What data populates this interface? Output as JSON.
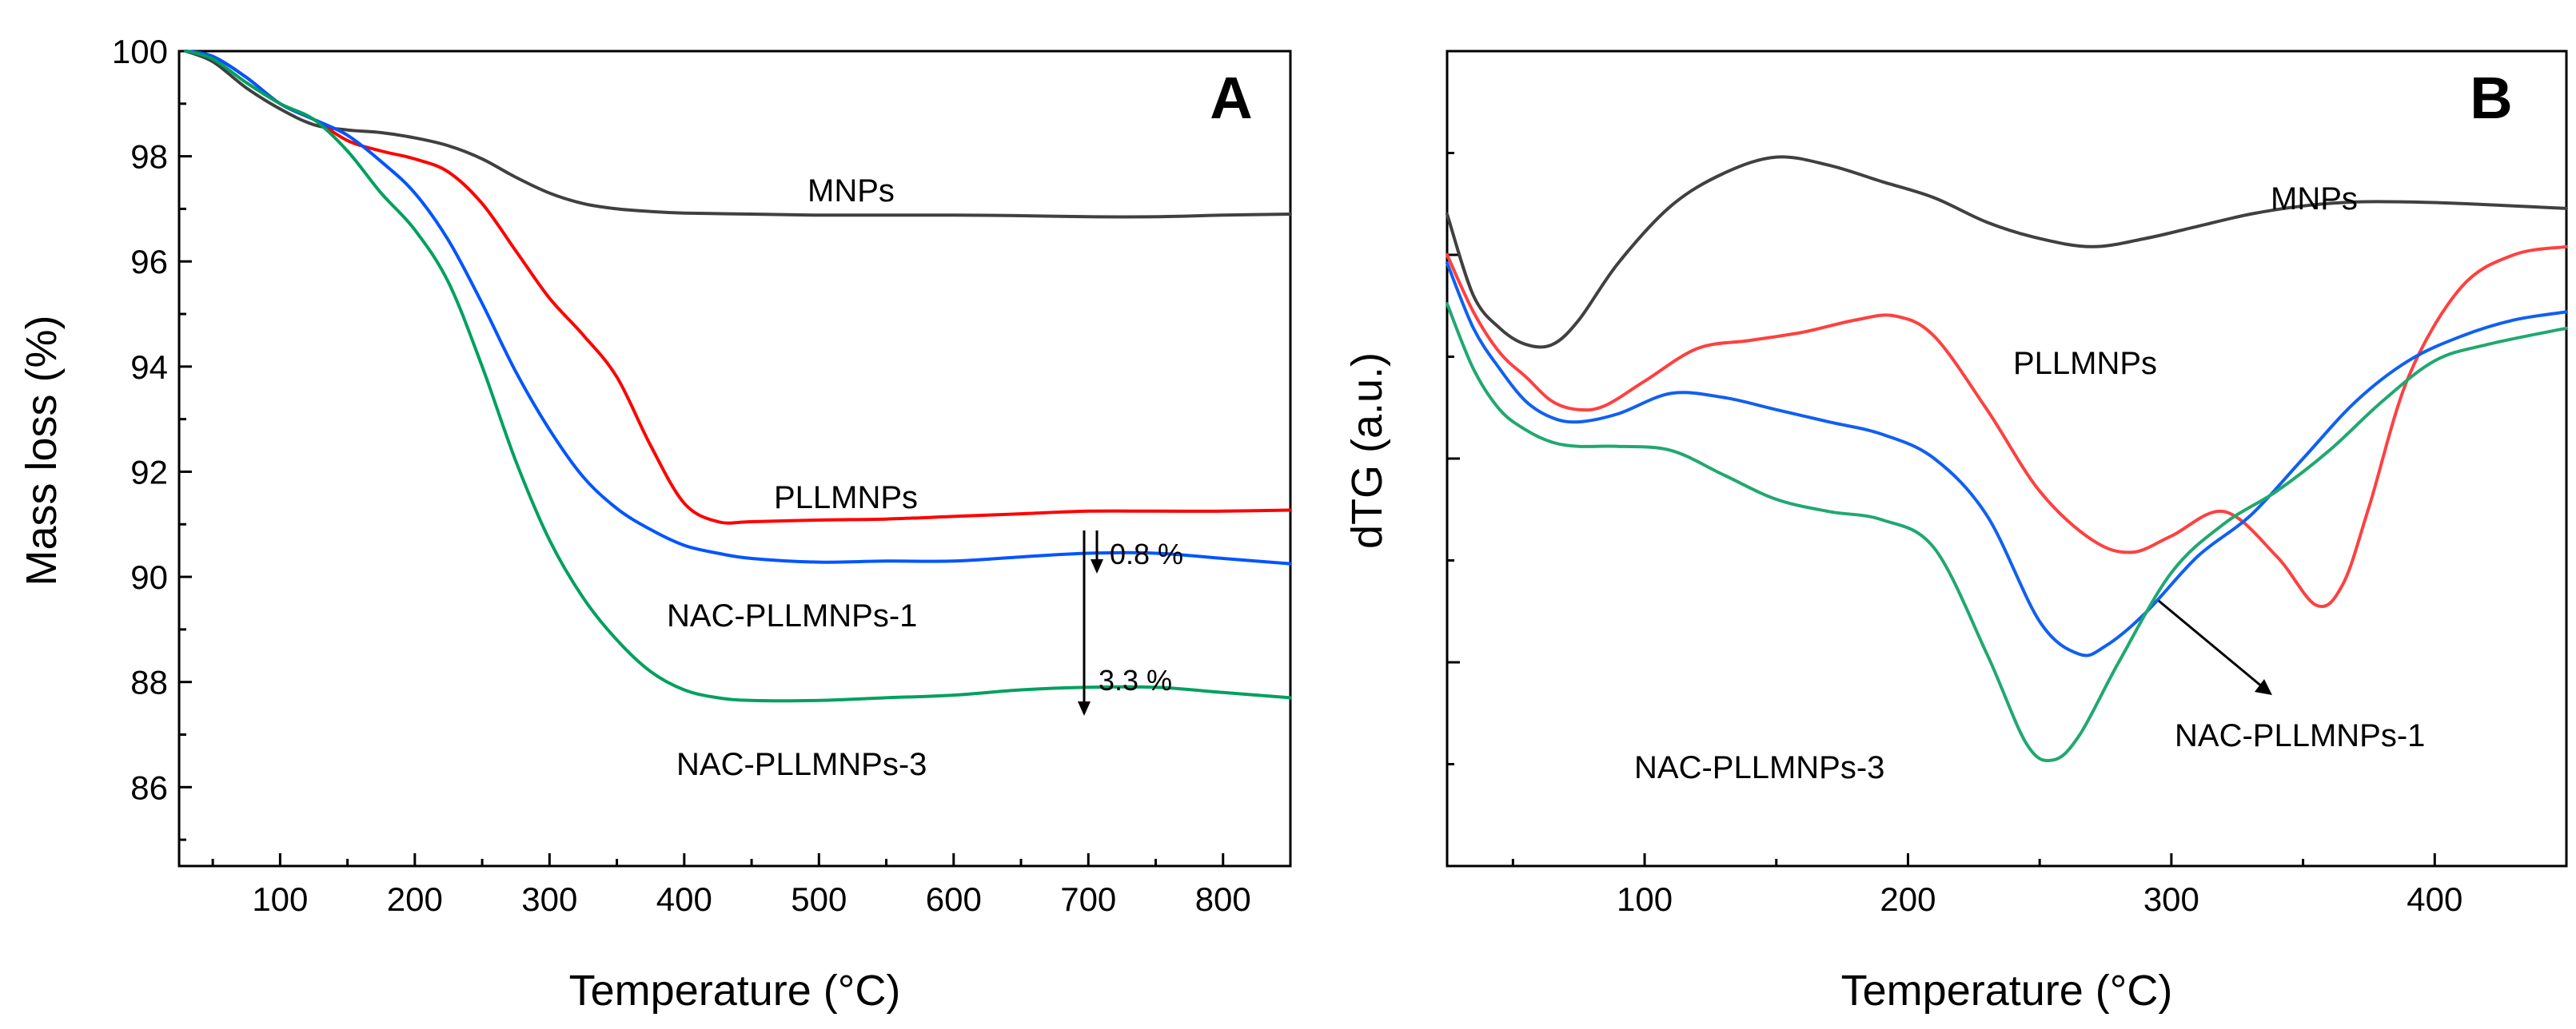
{
  "chart_data": [
    {
      "panel": "A",
      "type": "line",
      "xlabel": "Temperature (°C)",
      "ylabel": "Mass loss (%)",
      "xlim": [
        25,
        850
      ],
      "ylim": [
        84.5,
        100
      ],
      "xticks": [
        100,
        200,
        300,
        400,
        500,
        600,
        700,
        800
      ],
      "yticks": [
        86,
        88,
        90,
        92,
        94,
        96,
        98,
        100
      ],
      "series": [
        {
          "name": "MNPs",
          "color": "#404040",
          "x": [
            30,
            50,
            75,
            100,
            125,
            150,
            175,
            200,
            225,
            250,
            275,
            300,
            325,
            350,
            375,
            400,
            450,
            500,
            550,
            600,
            650,
            700,
            750,
            800,
            850
          ],
          "y": [
            100,
            99.8,
            99.3,
            98.9,
            98.6,
            98.5,
            98.45,
            98.35,
            98.2,
            97.95,
            97.6,
            97.3,
            97.1,
            97.0,
            96.95,
            96.92,
            96.9,
            96.88,
            96.88,
            96.88,
            96.87,
            96.85,
            96.85,
            96.88,
            96.9
          ]
        },
        {
          "name": "PLLMNPs",
          "color": "#ff0000",
          "x": [
            30,
            50,
            75,
            100,
            125,
            150,
            175,
            200,
            225,
            250,
            275,
            300,
            325,
            350,
            375,
            400,
            425,
            450,
            500,
            550,
            600,
            650,
            700,
            750,
            800,
            850
          ],
          "y": [
            100,
            99.9,
            99.5,
            99.0,
            98.7,
            98.3,
            98.1,
            97.95,
            97.7,
            97.1,
            96.2,
            95.3,
            94.6,
            93.8,
            92.5,
            91.4,
            91.05,
            91.05,
            91.08,
            91.1,
            91.15,
            91.2,
            91.25,
            91.25,
            91.25,
            91.27
          ]
        },
        {
          "name": "NAC-PLLMNPs-1",
          "color": "#0055ff",
          "x": [
            30,
            50,
            75,
            100,
            125,
            150,
            175,
            200,
            225,
            250,
            275,
            300,
            325,
            350,
            375,
            400,
            425,
            450,
            500,
            550,
            600,
            650,
            700,
            750,
            800,
            850
          ],
          "y": [
            100,
            99.9,
            99.5,
            99.0,
            98.7,
            98.4,
            97.9,
            97.3,
            96.4,
            95.2,
            93.9,
            92.8,
            91.9,
            91.3,
            90.9,
            90.6,
            90.45,
            90.35,
            90.28,
            90.3,
            90.3,
            90.38,
            90.45,
            90.45,
            90.35,
            90.25
          ]
        },
        {
          "name": "NAC-PLLMNPs-3",
          "color": "#00a060",
          "x": [
            30,
            50,
            75,
            100,
            125,
            150,
            175,
            200,
            225,
            250,
            275,
            300,
            325,
            350,
            375,
            400,
            425,
            450,
            500,
            550,
            600,
            650,
            700,
            750,
            800,
            850
          ],
          "y": [
            100,
            99.85,
            99.4,
            99.0,
            98.7,
            98.1,
            97.3,
            96.6,
            95.6,
            94.0,
            92.2,
            90.7,
            89.6,
            88.8,
            88.2,
            87.85,
            87.7,
            87.65,
            87.65,
            87.7,
            87.75,
            87.85,
            87.9,
            87.9,
            87.8,
            87.7
          ]
        }
      ],
      "labels": {
        "MNPs": "MNPs",
        "PLLMNPs": "PLLMNPs",
        "NAC1": "NAC-PLLMNPs-1",
        "NAC3": "NAC-PLLMNPs-3"
      },
      "annotations": [
        {
          "text": "0.8 %",
          "x": 700,
          "from_y": 91.2,
          "to_y": 90.45
        },
        {
          "text": "3.3 %",
          "x": 700,
          "from_y": 91.2,
          "to_y": 87.9
        }
      ],
      "panel_label": "A"
    },
    {
      "panel": "B",
      "type": "line",
      "xlabel": "Temperature (°C)",
      "ylabel": "dTG (a.u.)",
      "xlim": [
        25,
        450
      ],
      "ylim": [
        0,
        100
      ],
      "xticks": [
        100,
        200,
        300,
        400
      ],
      "series": [
        {
          "name": "MNPs",
          "color": "#404040",
          "x": [
            25,
            35,
            45,
            55,
            65,
            75,
            90,
            110,
            130,
            150,
            170,
            190,
            210,
            230,
            250,
            270,
            290,
            310,
            330,
            350,
            370,
            390,
            410,
            430,
            450
          ],
          "y": [
            80,
            70,
            66,
            64,
            64,
            67,
            74,
            81,
            85,
            87,
            86,
            84,
            82,
            79,
            77,
            76,
            77,
            78.5,
            80,
            81,
            81.5,
            81.5,
            81.3,
            81,
            80.7
          ]
        },
        {
          "name": "PLLMNPs",
          "color": "#ff4040",
          "x": [
            25,
            35,
            45,
            55,
            65,
            75,
            85,
            100,
            120,
            140,
            160,
            180,
            195,
            210,
            230,
            250,
            270,
            285,
            300,
            320,
            340,
            355,
            365,
            375,
            390,
            410,
            430,
            450
          ],
          "y": [
            75,
            68,
            63,
            60,
            57,
            56,
            56.5,
            59.5,
            63.5,
            64.5,
            65.5,
            67,
            67.5,
            65,
            56,
            46,
            40,
            38.5,
            40.5,
            43.5,
            38,
            32,
            34.5,
            44,
            60,
            71,
            75,
            76
          ]
        },
        {
          "name": "NAC-PLLMNPs-1",
          "color": "#1060f0",
          "x": [
            25,
            35,
            45,
            55,
            65,
            75,
            90,
            110,
            130,
            150,
            170,
            190,
            210,
            230,
            250,
            265,
            275,
            290,
            310,
            330,
            350,
            370,
            390,
            410,
            430,
            450
          ],
          "y": [
            74,
            66,
            61,
            57,
            55,
            54.5,
            55.5,
            58,
            57.5,
            56,
            54.5,
            53,
            50,
            43,
            30,
            26,
            27,
            31,
            38,
            43,
            50,
            57,
            62,
            65,
            67,
            68
          ]
        },
        {
          "name": "NAC-PLLMNPs-3",
          "color": "#20a870",
          "x": [
            25,
            35,
            45,
            55,
            65,
            75,
            90,
            110,
            130,
            150,
            170,
            190,
            210,
            230,
            245,
            255,
            265,
            280,
            300,
            320,
            340,
            360,
            380,
            400,
            420,
            450
          ],
          "y": [
            69,
            61,
            56,
            53.5,
            52,
            51.5,
            51.5,
            51,
            48,
            45,
            43.5,
            42.5,
            39,
            26,
            15,
            13,
            16,
            25,
            36,
            42,
            46,
            51,
            57,
            62,
            64,
            66
          ]
        }
      ],
      "labels": {
        "MNPs": "MNPs",
        "PLLMNPs": "PLLMNPs",
        "NAC1": "NAC-PLLMNPs-1",
        "NAC3": "NAC-PLLMNPs-3"
      },
      "panel_label": "B"
    }
  ]
}
